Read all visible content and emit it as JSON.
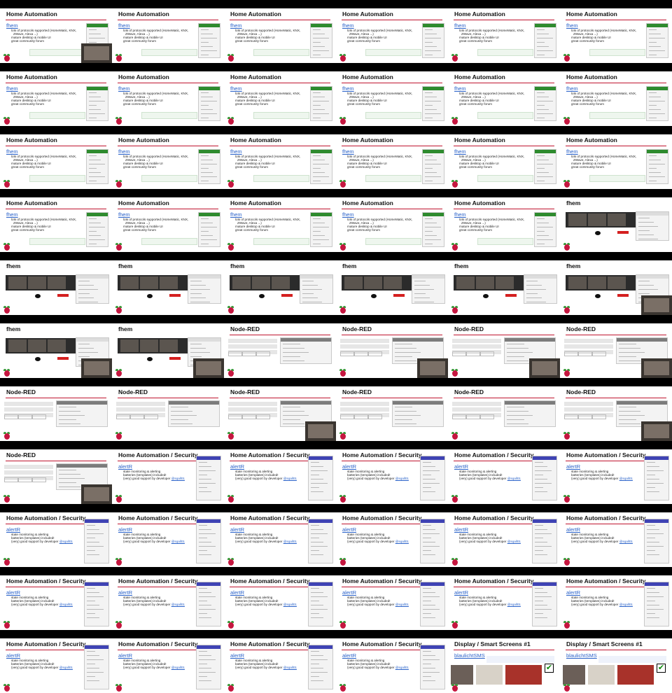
{
  "slides": [
    {
      "title": "Home Automation",
      "subtitle": "fhem",
      "bullets": [
        "lots of protocols supported (HomeMatic, KNX,",
        "ZWave, Alexa ...)",
        "mature desktop & mobile UI",
        "great community forum"
      ]
    },
    {
      "title": "fhem"
    },
    {
      "title": "Node-RED"
    },
    {
      "title": "Home Automation / Security",
      "subtitle": "alertR",
      "bullets": [
        "state monitoring & alerting",
        "batteries (templates) included!",
        "(very) good support by developer "
      ],
      "handle": "@sqall01"
    },
    {
      "title": "Display / Smart Screens #1",
      "subtitle": "blaulichtSMS"
    }
  ],
  "tile_sequence": [
    0,
    0,
    0,
    0,
    0,
    0,
    0,
    0,
    0,
    0,
    0,
    0,
    0,
    0,
    0,
    0,
    0,
    0,
    0,
    0,
    0,
    0,
    0,
    1,
    1,
    1,
    1,
    1,
    1,
    1,
    1,
    1,
    2,
    2,
    2,
    2,
    2,
    2,
    2,
    2,
    2,
    2,
    2,
    3,
    3,
    3,
    3,
    3,
    3,
    3,
    3,
    3,
    3,
    3,
    3,
    3,
    3,
    3,
    3,
    3,
    3,
    3,
    3,
    3,
    4,
    4
  ],
  "camera_overlay_tiles": [
    0,
    29,
    30,
    31,
    33,
    34,
    35,
    38,
    41,
    42
  ],
  "colors": {
    "background": "#000000",
    "rule": "#c0152f",
    "link": "#2a62c9",
    "fhem_header": "#2e8b2e",
    "alertr_header": "#3f43b4"
  }
}
